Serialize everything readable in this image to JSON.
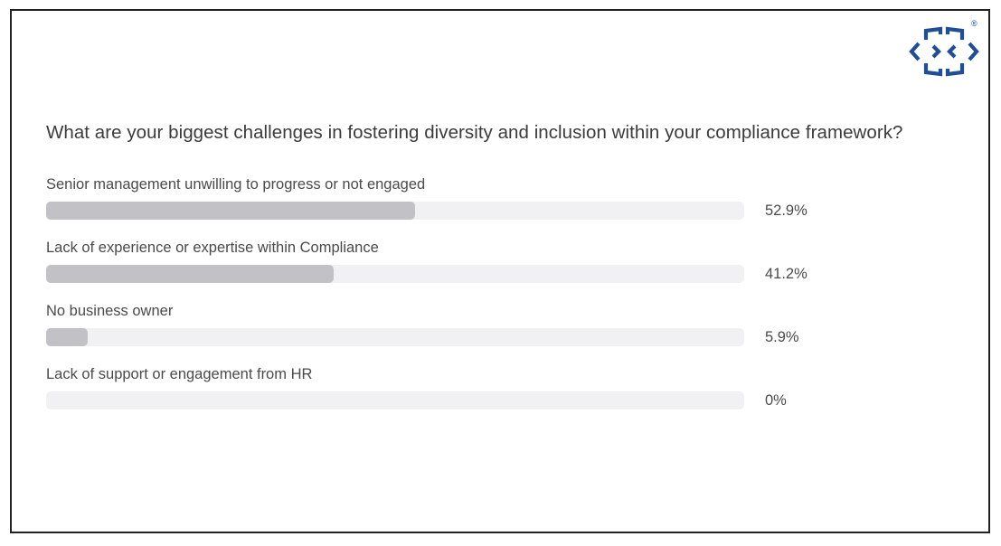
{
  "question": "What are your biggest challenges in fostering diversity and inclusion within your compliance framework?",
  "logo": {
    "registered_mark": "®",
    "color": "#1f4e96"
  },
  "chart_data": {
    "type": "bar",
    "orientation": "horizontal",
    "categories": [
      "Senior management unwilling to progress or not engaged",
      "Lack of experience or expertise within Compliance",
      "No business owner",
      "Lack of support or engagement from HR"
    ],
    "values": [
      52.9,
      41.2,
      5.9,
      0
    ],
    "value_labels": [
      "52.9%",
      "41.2%",
      "5.9%",
      "0%"
    ],
    "xlim": [
      0,
      100
    ],
    "bar_color": "#c1c1c6",
    "track_color": "#f1f1f3"
  }
}
